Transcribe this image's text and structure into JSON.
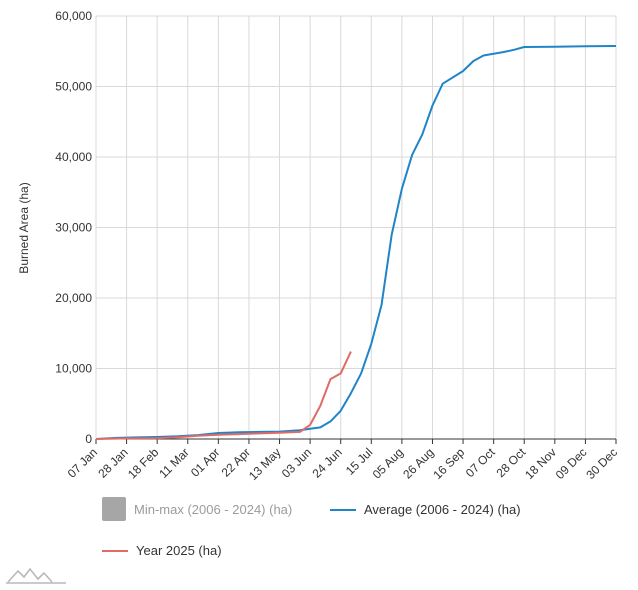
{
  "colors": {
    "average": "#1f85c7",
    "year": "#e06b66",
    "minmax": "#a6a6a6",
    "grid": "#d9d9d9",
    "axis": "#333333"
  },
  "chart_data": {
    "type": "line",
    "ylabel": "Burned Area (ha)",
    "ylim": [
      0,
      60000
    ],
    "yticks": [
      "0",
      "10,000",
      "20,000",
      "30,000",
      "40,000",
      "50,000",
      "60,000"
    ],
    "ytick_values": [
      0,
      10000,
      20000,
      30000,
      40000,
      50000,
      60000
    ],
    "x_tick_labels": [
      "07 Jan",
      "28 Jan",
      "18 Feb",
      "11 Mar",
      "01 Apr",
      "22 Apr",
      "13 May",
      "03 Jun",
      "24 Jun",
      "15 Jul",
      "05 Aug",
      "26 Aug",
      "16 Sep",
      "07 Oct",
      "28 Oct",
      "18 Nov",
      "09 Dec",
      "30 Dec"
    ],
    "x_unit": "week index (0 = 07 Jan, 3 = 28 Jan, ... 51 = 30 Dec)",
    "grid": true,
    "legend_position": "bottom",
    "series": [
      {
        "name": "Min-max (2006 - 2024) (ha)",
        "type": "band",
        "hidden": true,
        "points": []
      },
      {
        "name": "Average (2006 - 2024) (ha)",
        "color": "#1f85c7",
        "points": [
          [
            0,
            0
          ],
          [
            2,
            150
          ],
          [
            4,
            220
          ],
          [
            6,
            280
          ],
          [
            8,
            380
          ],
          [
            10,
            550
          ],
          [
            12,
            850
          ],
          [
            14,
            950
          ],
          [
            16,
            1000
          ],
          [
            18,
            1050
          ],
          [
            20,
            1250
          ],
          [
            21,
            1450
          ],
          [
            22,
            1650
          ],
          [
            23,
            2500
          ],
          [
            24,
            4000
          ],
          [
            25,
            6500
          ],
          [
            26,
            9300
          ],
          [
            27,
            13500
          ],
          [
            28,
            19000
          ],
          [
            29,
            29000
          ],
          [
            30,
            35500
          ],
          [
            31,
            40300
          ],
          [
            32,
            43200
          ],
          [
            33,
            47300
          ],
          [
            34,
            50400
          ],
          [
            36,
            52200
          ],
          [
            37,
            53600
          ],
          [
            38,
            54400
          ],
          [
            40,
            54900
          ],
          [
            41,
            55200
          ],
          [
            42,
            55600
          ],
          [
            45,
            55650
          ],
          [
            48,
            55700
          ],
          [
            51,
            55750
          ]
        ]
      },
      {
        "name": "Year 2025 (ha)",
        "color": "#e06b66",
        "points": [
          [
            0,
            0
          ],
          [
            3,
            80
          ],
          [
            6,
            100
          ],
          [
            8,
            250
          ],
          [
            10,
            450
          ],
          [
            12,
            600
          ],
          [
            14,
            700
          ],
          [
            16,
            800
          ],
          [
            18,
            900
          ],
          [
            20,
            1000
          ],
          [
            21,
            2000
          ],
          [
            22,
            4700
          ],
          [
            23,
            8500
          ],
          [
            24,
            9300
          ],
          [
            25,
            12400
          ]
        ]
      }
    ]
  },
  "legend": {
    "minmax_label": "Min-max (2006 - 2024) (ha)",
    "average_label": "Average (2006 - 2024) (ha)",
    "year_label": "Year 2025 (ha)"
  }
}
